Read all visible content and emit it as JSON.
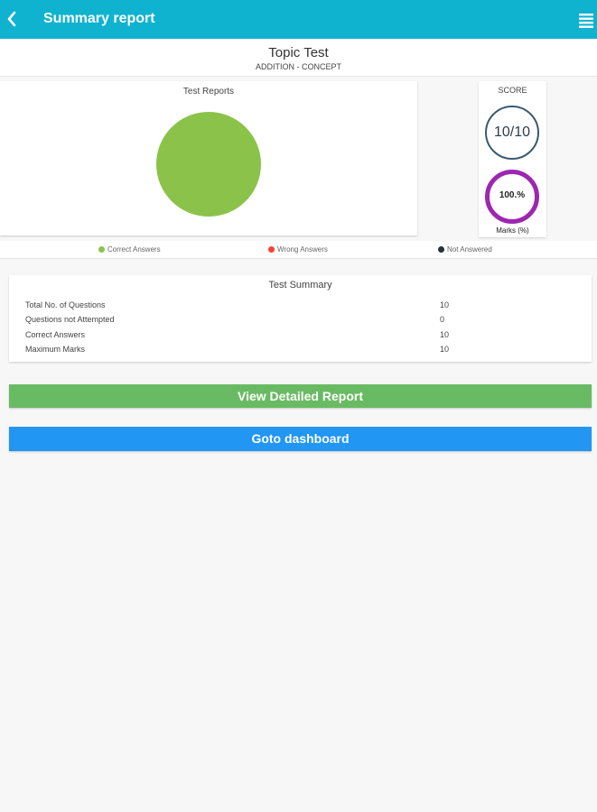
{
  "appbar": {
    "title": "Summary report",
    "back_icon": "chevron-left-icon",
    "menu_icon": "hamburger-menu-icon",
    "color": "#0fb3cf"
  },
  "topic": {
    "title": "Topic Test",
    "subtitle": "ADDITION - CONCEPT"
  },
  "chart_data": {
    "type": "pie",
    "title": "Test Reports",
    "categories": [
      "Correct Answers",
      "Wrong Answers",
      "Not Answered"
    ],
    "values": [
      10,
      0,
      0
    ],
    "colors": [
      "#8bc34a",
      "#f44336",
      "#263238"
    ],
    "legend_position": "bottom"
  },
  "score": {
    "label": "SCORE",
    "value": "10/10",
    "marks_value": "100.%",
    "marks_label": "Marks (%)",
    "marks_fraction": 1.0,
    "ring_color": "#9c27b0"
  },
  "summary": {
    "title": "Test Summary",
    "rows": [
      {
        "label": "Total No. of Questions",
        "value": "10"
      },
      {
        "label": "Questions not Attempted",
        "value": "0"
      },
      {
        "label": "Correct Answers",
        "value": "10"
      },
      {
        "label": "Maximum Marks",
        "value": "10"
      }
    ]
  },
  "buttons": {
    "detailed": "View Detailed Report",
    "dashboard": "Goto dashboard",
    "detailed_color": "#69bb63",
    "dashboard_color": "#2196f3"
  }
}
